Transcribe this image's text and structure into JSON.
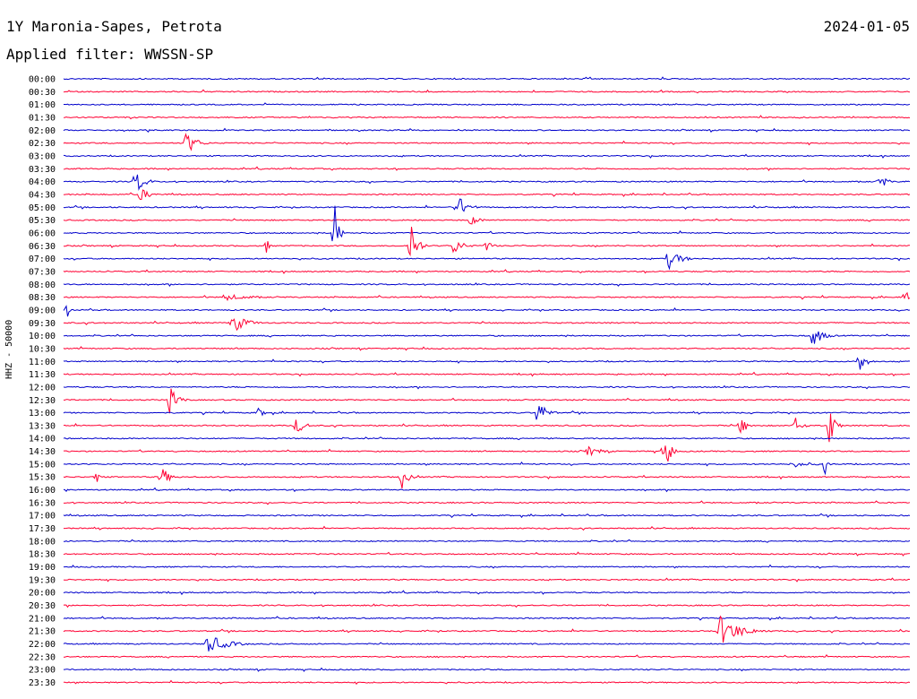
{
  "header": {
    "station": "1Y Maronia-Sapes, Petrota",
    "date": "2024-01-05",
    "filter": "Applied filter: WWSSN-SP"
  },
  "chart_data": {
    "type": "line",
    "ylabel": "HHZ - 50000",
    "colors": {
      "even_rows": "#0000cc",
      "odd_rows": "#ff0033"
    },
    "rows": [
      "00:00",
      "00:30",
      "01:00",
      "01:30",
      "02:00",
      "02:30",
      "03:00",
      "03:30",
      "04:00",
      "04:30",
      "05:00",
      "05:30",
      "06:00",
      "06:30",
      "07:00",
      "07:30",
      "08:00",
      "08:30",
      "09:00",
      "09:30",
      "10:00",
      "10:30",
      "11:00",
      "11:30",
      "12:00",
      "12:30",
      "13:00",
      "13:30",
      "14:00",
      "14:30",
      "15:00",
      "15:30",
      "16:00",
      "16:30",
      "17:00",
      "17:30",
      "18:00",
      "18:30",
      "19:00",
      "19:30",
      "20:00",
      "20:30",
      "21:00",
      "21:30",
      "22:00",
      "22:30",
      "23:00",
      "23:30"
    ],
    "events": [
      {
        "row": 5,
        "pos": 0.145,
        "amp": 14,
        "dur": 0.03
      },
      {
        "row": 8,
        "pos": 0.085,
        "amp": 16,
        "dur": 0.025
      },
      {
        "row": 8,
        "pos": 0.965,
        "amp": 9,
        "dur": 0.02
      },
      {
        "row": 9,
        "pos": 0.09,
        "amp": 8,
        "dur": 0.03
      },
      {
        "row": 10,
        "pos": 0.465,
        "amp": 15,
        "dur": 0.03
      },
      {
        "row": 11,
        "pos": 0.48,
        "amp": 6,
        "dur": 0.03
      },
      {
        "row": 12,
        "pos": 0.32,
        "amp": 38,
        "dur": 0.012
      },
      {
        "row": 13,
        "pos": 0.24,
        "amp": 10,
        "dur": 0.006
      },
      {
        "row": 13,
        "pos": 0.41,
        "amp": 32,
        "dur": 0.02
      },
      {
        "row": 13,
        "pos": 0.46,
        "amp": 10,
        "dur": 0.03
      },
      {
        "row": 13,
        "pos": 0.5,
        "amp": 6,
        "dur": 0.02
      },
      {
        "row": 14,
        "pos": 0.715,
        "amp": 12,
        "dur": 0.035
      },
      {
        "row": 17,
        "pos": 0.19,
        "amp": 4,
        "dur": 0.08
      },
      {
        "row": 17,
        "pos": 0.995,
        "amp": 12,
        "dur": 0.02
      },
      {
        "row": 18,
        "pos": 0.005,
        "amp": 9,
        "dur": 0.01
      },
      {
        "row": 19,
        "pos": 0.2,
        "amp": 12,
        "dur": 0.04
      },
      {
        "row": 20,
        "pos": 0.885,
        "amp": 13,
        "dur": 0.03
      },
      {
        "row": 22,
        "pos": 0.94,
        "amp": 14,
        "dur": 0.02
      },
      {
        "row": 25,
        "pos": 0.125,
        "amp": 16,
        "dur": 0.025
      },
      {
        "row": 26,
        "pos": 0.56,
        "amp": 16,
        "dur": 0.025
      },
      {
        "row": 26,
        "pos": 0.23,
        "amp": 5,
        "dur": 0.03
      },
      {
        "row": 27,
        "pos": 0.275,
        "amp": 10,
        "dur": 0.025
      },
      {
        "row": 27,
        "pos": 0.8,
        "amp": 11,
        "dur": 0.02
      },
      {
        "row": 27,
        "pos": 0.865,
        "amp": 9,
        "dur": 0.02
      },
      {
        "row": 27,
        "pos": 0.905,
        "amp": 26,
        "dur": 0.015
      },
      {
        "row": 29,
        "pos": 0.62,
        "amp": 6,
        "dur": 0.04
      },
      {
        "row": 29,
        "pos": 0.71,
        "amp": 36,
        "dur": 0.015
      },
      {
        "row": 30,
        "pos": 0.9,
        "amp": 12,
        "dur": 0.008
      },
      {
        "row": 30,
        "pos": 0.86,
        "amp": 4,
        "dur": 0.06
      },
      {
        "row": 31,
        "pos": 0.04,
        "amp": 18,
        "dur": 0.008
      },
      {
        "row": 31,
        "pos": 0.115,
        "amp": 13,
        "dur": 0.025
      },
      {
        "row": 31,
        "pos": 0.4,
        "amp": 13,
        "dur": 0.02
      },
      {
        "row": 43,
        "pos": 0.775,
        "amp": 18,
        "dur": 0.06
      },
      {
        "row": 44,
        "pos": 0.17,
        "amp": 11,
        "dur": 0.06
      }
    ]
  }
}
